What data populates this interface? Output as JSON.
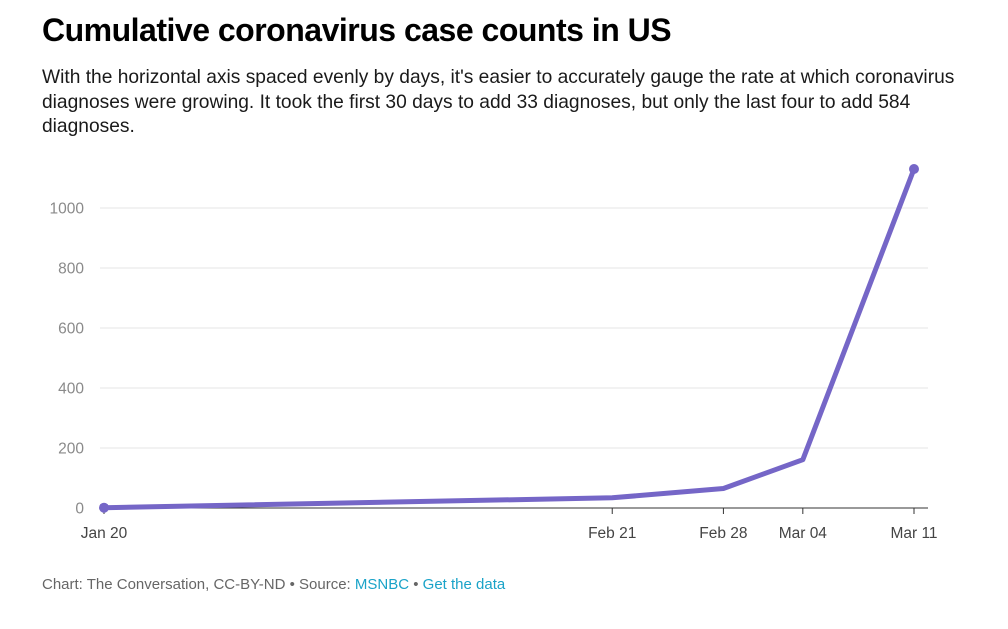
{
  "title": "Cumulative coronavirus case counts in US",
  "subtitle": "With the horizontal axis spaced evenly by days, it's easier to accurately gauge the rate at which coronavirus diagnoses were growing. It took the first 30 days to add 33 diagnoses, but only the last four to add 584 diagnoses.",
  "footer": {
    "credit": "Chart: The Conversation, CC-BY-ND",
    "sep1": " • ",
    "source_prefix": "Source: ",
    "source_link": "MSNBC",
    "sep2": " • ",
    "data_link": "Get the data"
  },
  "colors": {
    "line": "#7566c7",
    "grid": "#e6e6e6",
    "axis": "#333333",
    "link": "#1aa3c8"
  },
  "chart_data": {
    "type": "line",
    "title": "Cumulative coronavirus case counts in US",
    "xlabel": "",
    "ylabel": "",
    "x_scale": "time (evenly spaced by days)",
    "x_ticks": [
      "Jan 20",
      "Feb 21",
      "Feb 28",
      "Mar 04",
      "Mar 11"
    ],
    "y_ticks": [
      0,
      200,
      400,
      600,
      800,
      1000
    ],
    "ylim": [
      0,
      1150
    ],
    "grid": true,
    "legend": "none",
    "series": [
      {
        "x": [
          "Jan 20",
          "Feb 21",
          "Feb 28",
          "Mar 04",
          "Mar 11"
        ],
        "values": [
          1,
          34,
          65,
          161,
          1130
        ]
      }
    ]
  }
}
